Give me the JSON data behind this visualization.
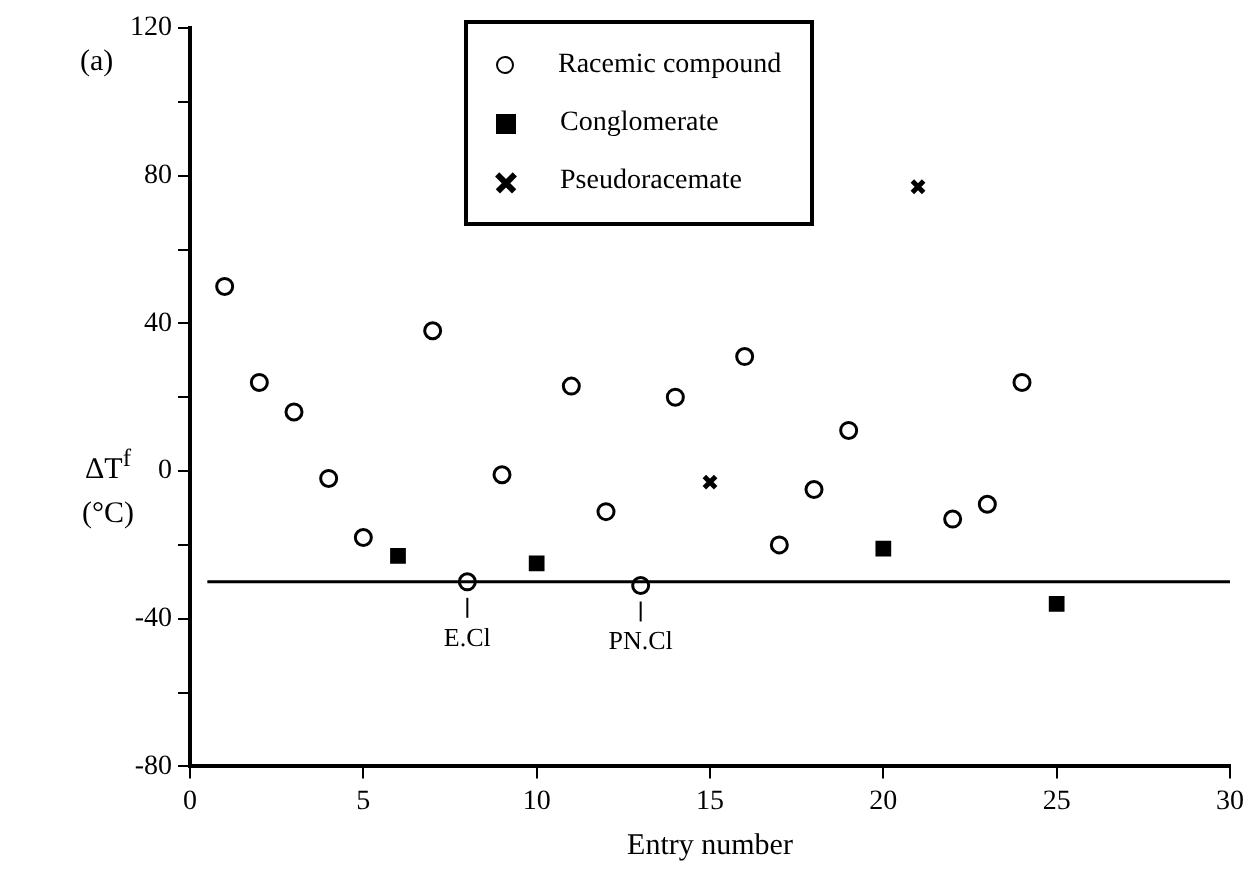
{
  "chart_data": {
    "type": "scatter",
    "xlabel": "Entry number",
    "ylabel": "ΔT$^{f}$ (°C)",
    "xlim": [
      0,
      30
    ],
    "xticks": [
      0,
      5,
      10,
      15,
      20,
      25,
      30
    ],
    "ylim": [
      -80,
      120
    ],
    "yticks": [
      -80,
      {
        "value": -60,
        "label": null
      },
      -40,
      {
        "value": -20,
        "label": null
      },
      0,
      {
        "value": 20,
        "label": null
      },
      40,
      {
        "value": 60,
        "label": null
      },
      80,
      {
        "value": 100,
        "label": null
      },
      120
    ],
    "grid": false,
    "legend": "top",
    "series": [
      {
        "name": "Racemic compound",
        "color": "#000000",
        "marker": "circle",
        "x": [
          1,
          2,
          3,
          4,
          5,
          7,
          8,
          9,
          11,
          12,
          13,
          14,
          16,
          17,
          18,
          19,
          22,
          23,
          24
        ],
        "values": [
          50,
          24,
          16,
          -2,
          -18,
          38,
          -30,
          -1,
          23,
          -11,
          -31,
          20,
          31,
          -20,
          -5,
          11,
          -13,
          -9,
          24
        ]
      },
      {
        "name": "Conglomerate",
        "color": "#000000",
        "marker": "square",
        "x": [
          6,
          10,
          20,
          25
        ],
        "values": [
          -23,
          -25,
          -21,
          -36
        ]
      },
      {
        "name": "Pseudoracemate",
        "color": "#000000",
        "marker": "cross",
        "x": [
          15,
          21
        ],
        "values": [
          -3,
          77
        ]
      }
    ],
    "ref_lines": [
      {
        "axis": "y",
        "value": -30,
        "color": "#000000"
      }
    ],
    "annotations": [
      "(a)",
      {
        "text": "E.Cl",
        "x": 8,
        "y": -30
      },
      {
        "text": "PN.Cl",
        "x": 13,
        "y": -31
      }
    ]
  }
}
